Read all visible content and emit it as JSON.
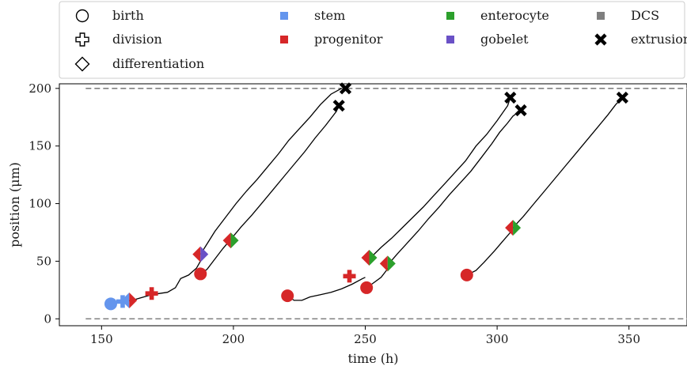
{
  "chart_data": {
    "type": "line",
    "xlabel": "time (h)",
    "ylabel": "position (μm)",
    "xlim": [
      134,
      372
    ],
    "ylim": [
      -6,
      204
    ],
    "xticks": [
      150,
      200,
      250,
      300,
      350
    ],
    "yticks": [
      0,
      50,
      100,
      150,
      200
    ],
    "grid": false,
    "legend_position": "top",
    "reference_lines": [
      {
        "y": 0,
        "x_from": 144,
        "x_to": 372,
        "color": "#808080",
        "style": "dashed"
      },
      {
        "y": 200,
        "x_from": 144,
        "x_to": 372,
        "color": "#808080",
        "style": "dashed"
      }
    ],
    "colors": {
      "stem": "#6495ed",
      "progenitor": "#d62728",
      "enterocyte": "#2ca02c",
      "gobelet": "#6a51c6",
      "DCS": "#7f7f7f",
      "extrusion": "#000000"
    },
    "legend": [
      {
        "label": "birth",
        "marker": "circle-outline"
      },
      {
        "label": "division",
        "marker": "plus-outline"
      },
      {
        "label": "differentiation",
        "marker": "diamond-outline"
      },
      {
        "label": "stem",
        "marker": "square",
        "color": "#6495ed"
      },
      {
        "label": "progenitor",
        "marker": "square",
        "color": "#d62728"
      },
      {
        "label": "enterocyte",
        "marker": "square",
        "color": "#2ca02c"
      },
      {
        "label": "gobelet",
        "marker": "square",
        "color": "#6a51c6"
      },
      {
        "label": "DCS",
        "marker": "square",
        "color": "#7f7f7f"
      },
      {
        "label": "extrusion",
        "marker": "x",
        "color": "#000000"
      }
    ],
    "series": [
      {
        "points": [
          [
            153.5,
            13
          ],
          [
            156,
            14
          ],
          [
            158,
            15
          ]
        ],
        "color": "#6495ed"
      },
      {
        "points": [
          [
            159,
            15
          ],
          [
            163,
            17
          ],
          [
            166,
            19
          ],
          [
            169,
            21
          ],
          [
            172,
            22
          ],
          [
            175,
            23
          ],
          [
            178,
            27
          ],
          [
            180,
            35
          ],
          [
            183,
            38
          ],
          [
            186,
            44
          ],
          [
            188,
            52
          ],
          [
            188,
            56
          ]
        ],
        "color": "#000000"
      },
      {
        "points": [
          [
            187.5,
            56
          ],
          [
            190,
            65
          ],
          [
            193,
            76
          ],
          [
            197,
            88
          ],
          [
            201,
            100
          ],
          [
            205,
            111
          ],
          [
            209,
            121
          ],
          [
            213,
            132
          ],
          [
            217,
            143
          ],
          [
            221,
            155
          ],
          [
            225,
            165
          ],
          [
            229,
            175
          ],
          [
            233,
            186
          ],
          [
            237,
            195
          ],
          [
            241,
            200
          ]
        ],
        "color": "#000000"
      },
      {
        "points": [
          [
            187.5,
            39
          ],
          [
            190,
            43
          ],
          [
            193,
            52
          ],
          [
            196,
            61
          ],
          [
            199,
            69
          ],
          [
            203,
            80
          ],
          [
            207,
            90
          ],
          [
            211,
            101
          ],
          [
            215,
            112
          ],
          [
            219,
            123
          ],
          [
            223,
            134
          ],
          [
            227,
            145
          ],
          [
            231,
            157
          ],
          [
            235,
            168
          ],
          [
            239,
            180
          ],
          [
            240,
            185
          ]
        ],
        "color": "#000000"
      },
      {
        "points": [
          [
            220.5,
            20
          ],
          [
            223,
            16
          ],
          [
            226,
            16
          ],
          [
            229,
            19
          ],
          [
            233,
            21
          ],
          [
            237,
            23
          ],
          [
            241,
            26
          ],
          [
            245,
            30
          ],
          [
            249,
            35
          ],
          [
            250,
            36
          ]
        ],
        "color": "#000000"
      },
      {
        "points": [
          [
            250.5,
            27
          ],
          [
            253,
            31
          ],
          [
            256,
            36
          ],
          [
            258,
            42
          ],
          [
            260,
            48
          ],
          [
            259.5,
            48
          ]
        ],
        "color": "#000000"
      },
      {
        "points": [
          [
            252,
            53
          ],
          [
            256,
            62
          ],
          [
            260,
            70
          ],
          [
            264,
            79
          ],
          [
            268,
            88
          ],
          [
            272,
            97
          ],
          [
            276,
            107
          ],
          [
            280,
            117
          ],
          [
            284,
            127
          ],
          [
            288,
            137
          ],
          [
            292,
            150
          ],
          [
            296,
            160
          ],
          [
            300,
            172
          ],
          [
            304,
            185
          ],
          [
            305,
            192
          ]
        ],
        "color": "#000000"
      },
      {
        "points": [
          [
            259,
            48
          ],
          [
            262,
            56
          ],
          [
            266,
            66
          ],
          [
            270,
            76
          ],
          [
            274,
            87
          ],
          [
            278,
            97
          ],
          [
            282,
            108
          ],
          [
            286,
            118
          ],
          [
            290,
            128
          ],
          [
            294,
            140
          ],
          [
            298,
            152
          ],
          [
            301,
            162
          ],
          [
            304,
            170
          ],
          [
            306,
            176
          ],
          [
            309,
            181
          ]
        ],
        "color": "#000000"
      },
      {
        "points": [
          [
            288.5,
            38
          ],
          [
            292,
            42
          ],
          [
            295,
            49
          ],
          [
            299,
            59
          ],
          [
            302,
            67
          ],
          [
            305,
            75
          ],
          [
            306,
            79
          ]
        ],
        "color": "#000000"
      },
      {
        "points": [
          [
            306,
            79
          ],
          [
            310,
            89
          ],
          [
            314,
            100
          ],
          [
            318,
            111
          ],
          [
            322,
            122
          ],
          [
            326,
            133
          ],
          [
            330,
            144
          ],
          [
            334,
            155
          ],
          [
            338,
            166
          ],
          [
            342,
            177
          ],
          [
            345,
            186
          ],
          [
            347.5,
            192
          ]
        ],
        "color": "#000000"
      }
    ],
    "events": [
      {
        "type": "birth",
        "x": 153.5,
        "y": 13,
        "colors": [
          "#6495ed"
        ]
      },
      {
        "type": "division",
        "x": 158,
        "y": 15,
        "colors": [
          "#6495ed"
        ]
      },
      {
        "type": "differentiation",
        "x": 160.5,
        "y": 16,
        "colors": [
          "#6495ed",
          "#d62728"
        ]
      },
      {
        "type": "division",
        "x": 169,
        "y": 22,
        "colors": [
          "#d62728"
        ]
      },
      {
        "type": "birth",
        "x": 187.5,
        "y": 39,
        "colors": [
          "#d62728"
        ]
      },
      {
        "type": "differentiation",
        "x": 187.5,
        "y": 56,
        "colors": [
          "#d62728",
          "#6a51c6"
        ]
      },
      {
        "type": "differentiation",
        "x": 199,
        "y": 68,
        "colors": [
          "#d62728",
          "#2ca02c"
        ]
      },
      {
        "type": "extrusion",
        "x": 240,
        "y": 185,
        "colors": [
          "#000000"
        ]
      },
      {
        "type": "extrusion",
        "x": 242.5,
        "y": 200,
        "colors": [
          "#000000"
        ]
      },
      {
        "type": "birth",
        "x": 220.5,
        "y": 20,
        "colors": [
          "#d62728"
        ]
      },
      {
        "type": "division",
        "x": 244,
        "y": 37,
        "colors": [
          "#d62728"
        ]
      },
      {
        "type": "birth",
        "x": 250.5,
        "y": 27,
        "colors": [
          "#d62728"
        ]
      },
      {
        "type": "differentiation",
        "x": 251.5,
        "y": 53,
        "colors": [
          "#d62728",
          "#2ca02c"
        ]
      },
      {
        "type": "differentiation",
        "x": 258.5,
        "y": 48,
        "colors": [
          "#d62728",
          "#2ca02c"
        ]
      },
      {
        "type": "extrusion",
        "x": 305,
        "y": 192,
        "colors": [
          "#000000"
        ]
      },
      {
        "type": "extrusion",
        "x": 309,
        "y": 181,
        "colors": [
          "#000000"
        ]
      },
      {
        "type": "birth",
        "x": 288.5,
        "y": 38,
        "colors": [
          "#d62728"
        ]
      },
      {
        "type": "differentiation",
        "x": 306,
        "y": 79,
        "colors": [
          "#d62728",
          "#2ca02c"
        ]
      },
      {
        "type": "extrusion",
        "x": 347.5,
        "y": 192,
        "colors": [
          "#000000"
        ]
      }
    ]
  }
}
